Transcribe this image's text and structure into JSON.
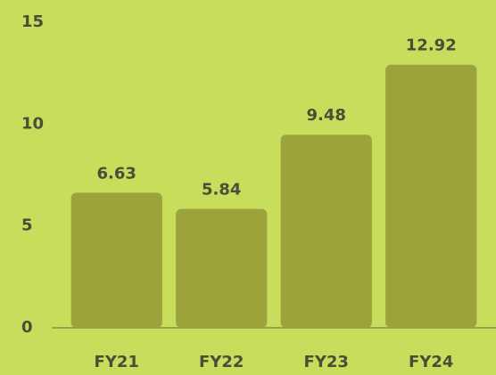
{
  "chart_data": {
    "type": "bar",
    "categories": [
      "FY21",
      "FY22",
      "FY23",
      "FY24"
    ],
    "values": [
      6.63,
      5.84,
      9.48,
      12.92
    ],
    "color": "#9ca33b",
    "ylim": [
      0,
      15
    ],
    "yticks": [
      0,
      5,
      10,
      15
    ],
    "grid": false
  }
}
